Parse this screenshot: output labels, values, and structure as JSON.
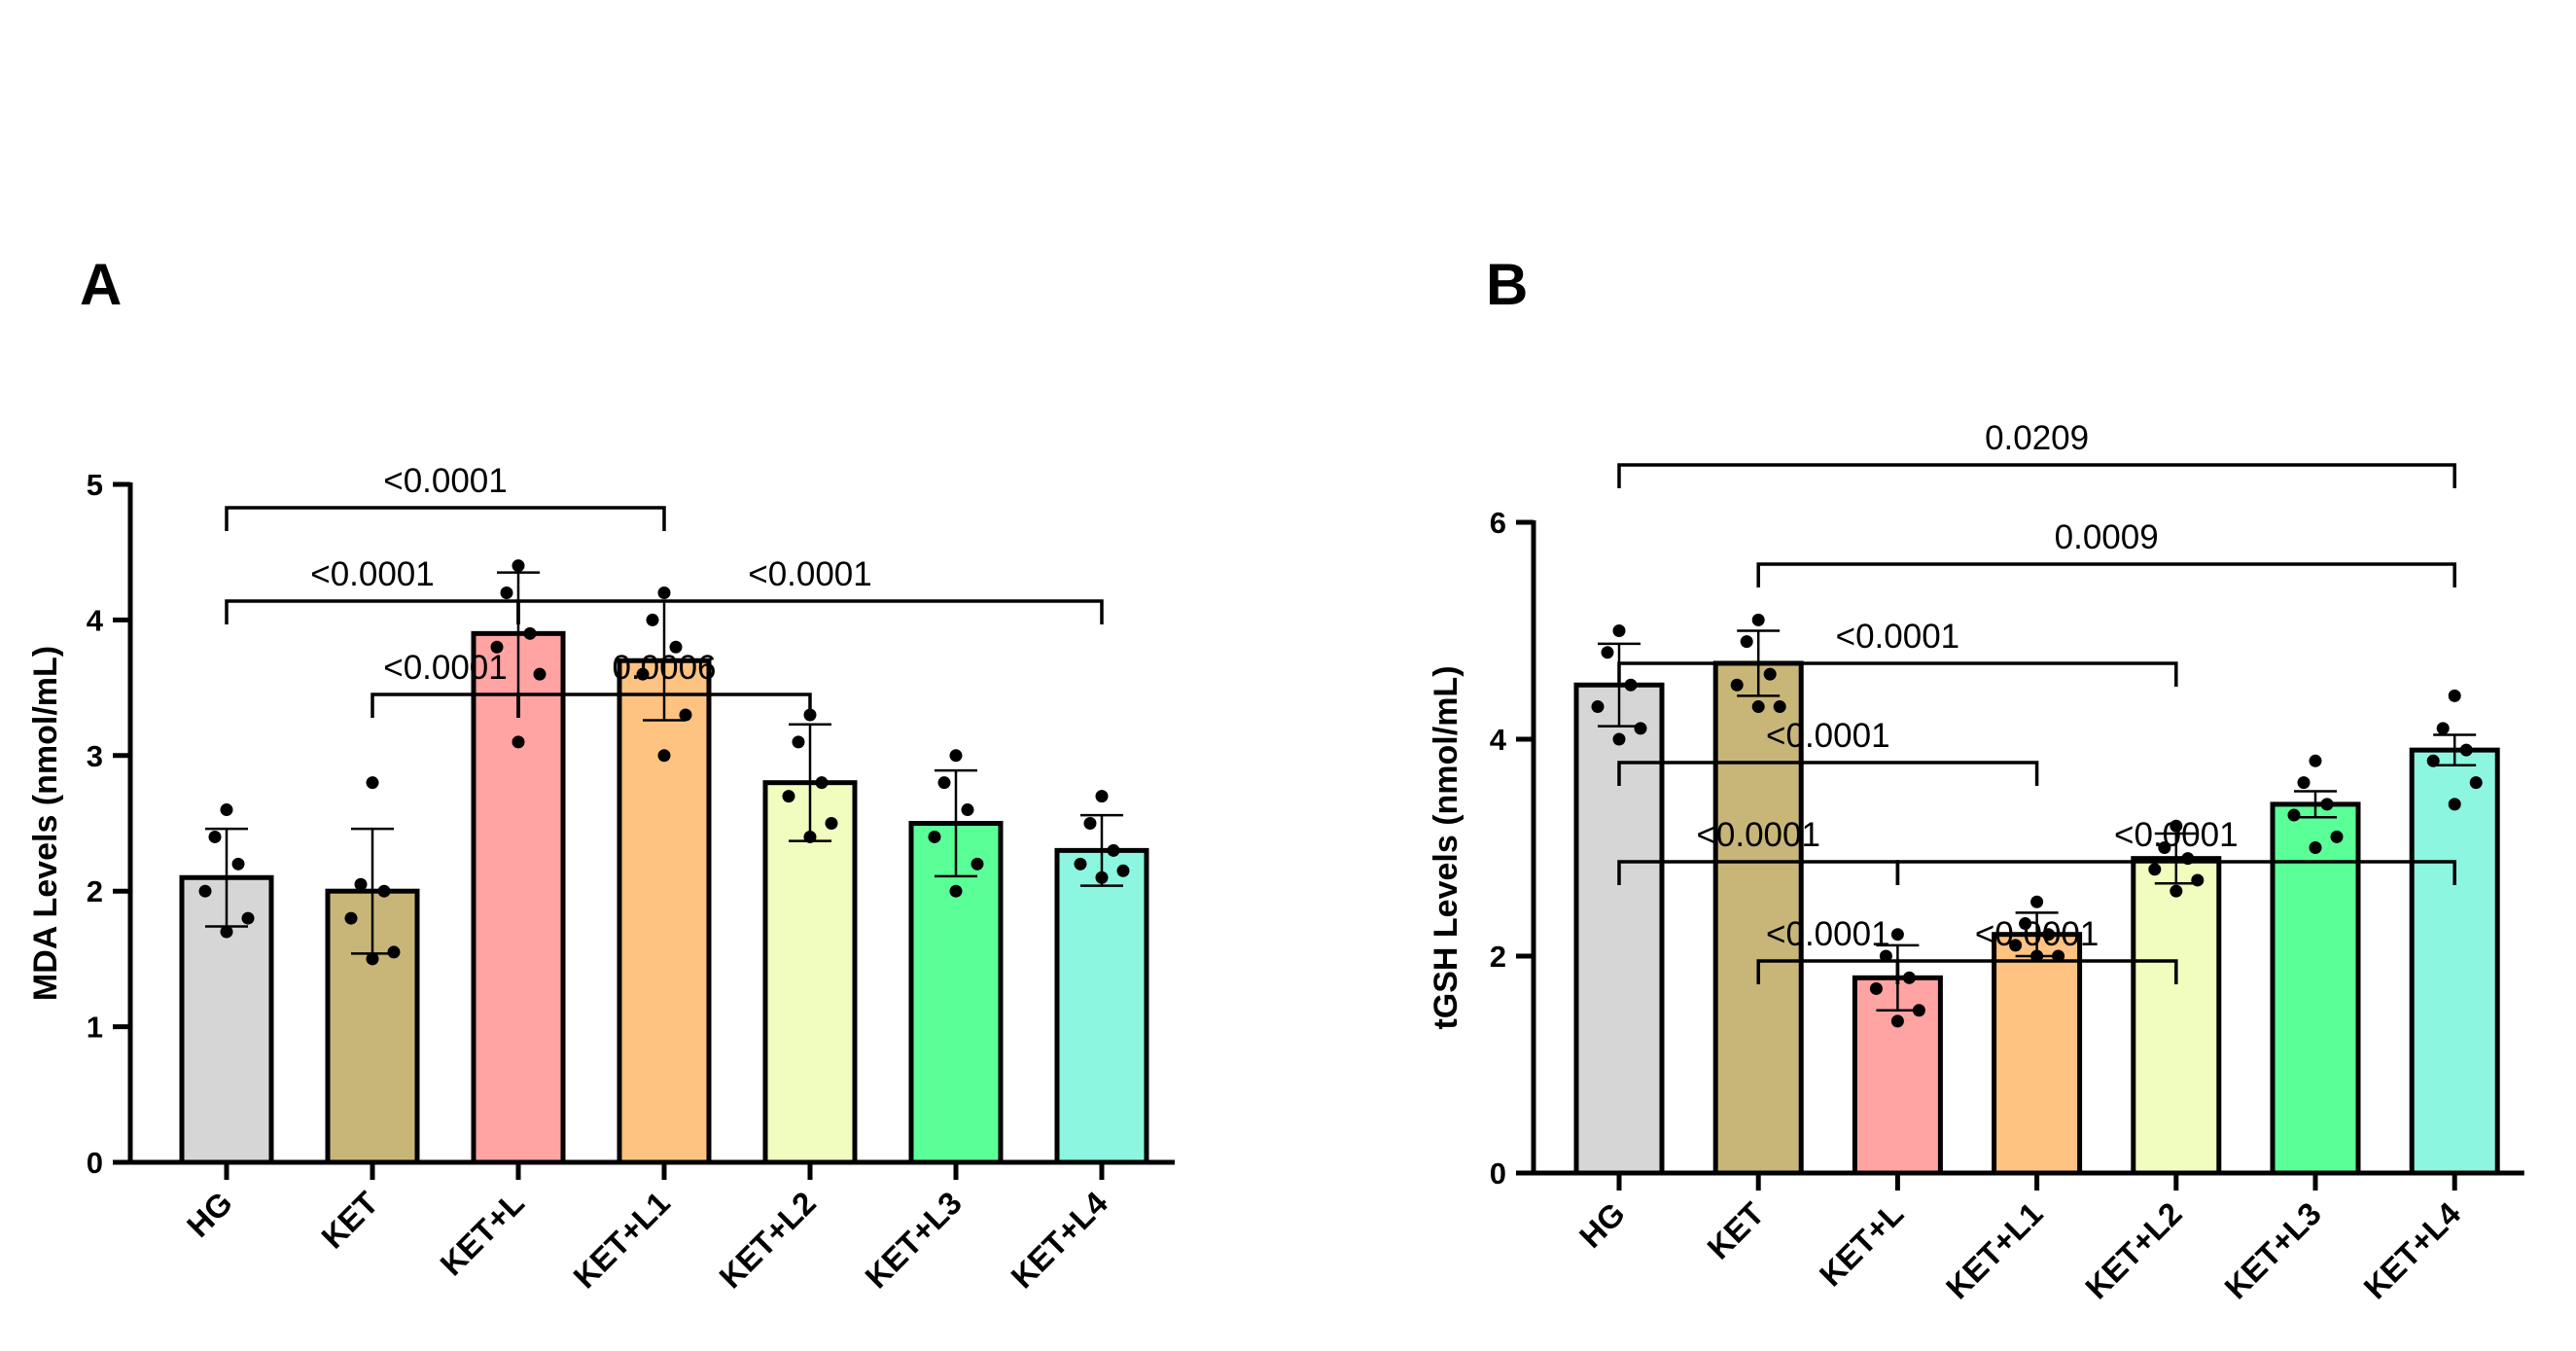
{
  "chart_data": [
    {
      "panel": "A",
      "type": "bar",
      "ylabel": "MDA Levels (nmol/mL)",
      "ylim": [
        0,
        5
      ],
      "yticks": [
        0,
        1,
        2,
        3,
        4,
        5
      ],
      "categories": [
        "HG",
        "KET",
        "KET+L",
        "KET+L1",
        "KET+L2",
        "KET+L3",
        "KET+L4"
      ],
      "colors": [
        "#d6d6d6",
        "#c8b679",
        "#ffa3a3",
        "#ffc381",
        "#f0fdbf",
        "#5bff97",
        "#8cf6e0"
      ],
      "values": [
        2.1,
        2.0,
        3.9,
        3.7,
        2.8,
        2.5,
        2.3
      ],
      "errors": [
        0.36,
        0.46,
        0.45,
        0.44,
        0.43,
        0.39,
        0.26
      ],
      "points": [
        [
          2.6,
          2.4,
          2.2,
          2.0,
          1.8,
          1.7
        ],
        [
          2.8,
          2.05,
          2.0,
          1.8,
          1.55,
          1.5
        ],
        [
          4.4,
          4.2,
          3.9,
          3.8,
          3.6,
          3.1
        ],
        [
          4.2,
          4.0,
          3.8,
          3.6,
          3.3,
          3.0
        ],
        [
          3.3,
          3.1,
          2.8,
          2.7,
          2.5,
          2.4
        ],
        [
          3.0,
          2.8,
          2.6,
          2.4,
          2.2,
          2.0
        ],
        [
          2.7,
          2.5,
          2.3,
          2.2,
          2.15,
          2.1
        ]
      ],
      "comparisons": [
        {
          "from": 0,
          "to": 3,
          "label": "<0.0001",
          "level": 0
        },
        {
          "from": 0,
          "to": 2,
          "label": "<0.0001",
          "level": 1
        },
        {
          "from": 2,
          "to": 6,
          "label": "<0.0001",
          "level": 1
        },
        {
          "from": 1,
          "to": 2,
          "label": "<0.0001",
          "level": 2
        },
        {
          "from": 2,
          "to": 4,
          "label": "0.0006",
          "level": 2
        }
      ]
    },
    {
      "panel": "B",
      "type": "bar",
      "ylabel": "tGSH Levels (nmol/mL)",
      "ylim": [
        0,
        6
      ],
      "yticks": [
        0,
        2,
        4,
        6
      ],
      "categories": [
        "HG",
        "KET",
        "KET+L",
        "KET+L1",
        "KET+L2",
        "KET+L3",
        "KET+L4"
      ],
      "colors": [
        "#d6d6d6",
        "#c8b679",
        "#ffa3a3",
        "#ffc381",
        "#f0fdbf",
        "#5bff97",
        "#8cf6e0"
      ],
      "values": [
        4.5,
        4.7,
        1.8,
        2.2,
        2.9,
        3.4,
        3.9
      ],
      "errors": [
        0.38,
        0.3,
        0.3,
        0.2,
        0.23,
        0.12,
        0.14
      ],
      "points": [
        [
          5.0,
          4.8,
          4.5,
          4.3,
          4.1,
          4.0
        ],
        [
          5.1,
          4.9,
          4.6,
          4.5,
          4.3,
          4.3
        ],
        [
          2.2,
          2.0,
          1.8,
          1.7,
          1.5,
          1.4
        ],
        [
          2.5,
          2.3,
          2.2,
          2.1,
          2.0,
          2.0
        ],
        [
          3.2,
          3.0,
          2.9,
          2.8,
          2.7,
          2.6
        ],
        [
          3.8,
          3.6,
          3.4,
          3.3,
          3.1,
          3.0
        ],
        [
          4.4,
          4.1,
          3.9,
          3.8,
          3.6,
          3.4
        ]
      ],
      "comparisons": [
        {
          "from": 0,
          "to": 6,
          "label": "0.0209",
          "level": 0
        },
        {
          "from": 1,
          "to": 6,
          "label": "0.0009",
          "level": 1
        },
        {
          "from": 0,
          "to": 4,
          "label": "<0.0001",
          "level": 2
        },
        {
          "from": 0,
          "to": 3,
          "label": "<0.0001",
          "level": 3
        },
        {
          "from": 0,
          "to": 2,
          "label": "<0.0001",
          "level": 4
        },
        {
          "from": 2,
          "to": 6,
          "label": "<0.0001",
          "level": 4
        },
        {
          "from": 1,
          "to": 2,
          "label": "<0.0001",
          "level": 5
        },
        {
          "from": 2,
          "to": 4,
          "label": "<0.0001",
          "level": 5
        }
      ]
    }
  ]
}
